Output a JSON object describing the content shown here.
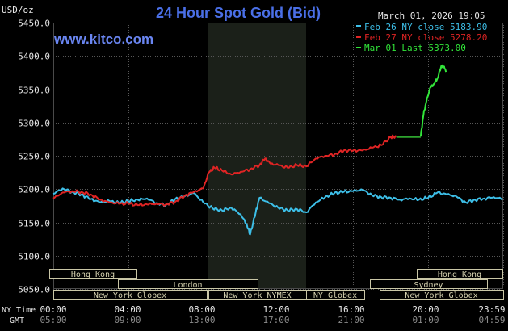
{
  "chart_data": {
    "type": "line",
    "title": "24 Hour Spot Gold (Bid)",
    "watermark": "www.kitco.com",
    "timestamp": "March 01, 2026 19:05",
    "y_unit": "USD/oz",
    "ylim": [
      5050,
      5450
    ],
    "y_ticks": [
      "5450.0",
      "5400.0",
      "5350.0",
      "5300.0",
      "5250.0",
      "5200.0",
      "5150.0",
      "5100.0",
      "5050.0"
    ],
    "x_row_label_ny": "NY Time",
    "x_row_label_gmt": "GMT",
    "x_ticks_ny": [
      "00:00",
      "04:00",
      "08:00",
      "12:00",
      "16:00",
      "20:00",
      "23:59"
    ],
    "x_ticks_gmt": [
      "05:00",
      "09:00",
      "13:00",
      "17:00",
      "21:00",
      "01:00",
      "04:59"
    ],
    "grid": true,
    "legend_position": "top-right",
    "legend": [
      {
        "label": "Feb 26 NY close 5183.90",
        "color": "#3dbfe8"
      },
      {
        "label": "Feb 27 NY close 5278.20",
        "color": "#e02424"
      },
      {
        "label": "Mar 01 Last 5373.00",
        "color": "#32e63a"
      }
    ],
    "sessions": {
      "hong_kong_1": "Hong Kong",
      "hong_kong_2": "Hong Kong",
      "london": "London",
      "sydney": "Sydney",
      "new_york_globex_1": "New York Globex",
      "new_york_nymex": "New York NYMEX",
      "ny_globex": "NY Globex",
      "new_york_globex_2": "New York Globex"
    },
    "colors": {
      "feb26": "#3dbfe8",
      "feb27": "#e02424",
      "mar01": "#32e63a",
      "flat": "#2ea42e",
      "title": "#4a6fe6",
      "watermark": "#6a86f2"
    },
    "series": [
      {
        "name": "Feb 26 NY close 5183.90",
        "x_hours": [
          0.0,
          0.5,
          1.0,
          1.5,
          2.0,
          2.5,
          3.0,
          3.5,
          4.0,
          4.5,
          5.0,
          5.5,
          6.0,
          6.5,
          7.0,
          7.5,
          8.0,
          8.5,
          9.0,
          9.5,
          10.0,
          10.3,
          10.5,
          10.8,
          11.0,
          11.5,
          12.0,
          12.5,
          13.0,
          13.5,
          14.0,
          14.5,
          15.0,
          15.5,
          16.0,
          16.5,
          17.0,
          17.5,
          18.0,
          18.5,
          19.0,
          19.5,
          20.0,
          20.5,
          21.0,
          21.5,
          22.0,
          22.5,
          23.0,
          23.5,
          23.98
        ],
        "values": [
          5193,
          5201,
          5196,
          5192,
          5185,
          5180,
          5182,
          5179,
          5182,
          5184,
          5186,
          5179,
          5176,
          5185,
          5189,
          5194,
          5180,
          5171,
          5168,
          5172,
          5162,
          5148,
          5132,
          5165,
          5187,
          5179,
          5172,
          5168,
          5170,
          5165,
          5180,
          5188,
          5194,
          5196,
          5197,
          5199,
          5191,
          5188,
          5187,
          5184,
          5186,
          5184,
          5187,
          5195,
          5192,
          5189,
          5180,
          5184,
          5186,
          5188,
          5185
        ]
      },
      {
        "name": "Feb 27 NY close 5278.20",
        "x_hours": [
          0.0,
          0.5,
          1.0,
          1.5,
          2.0,
          2.5,
          3.0,
          3.5,
          4.0,
          4.5,
          5.0,
          5.5,
          6.0,
          6.5,
          7.0,
          7.5,
          8.0,
          8.3,
          8.6,
          9.0,
          9.5,
          10.0,
          10.5,
          11.0,
          11.3,
          11.6,
          12.0,
          12.5,
          13.0,
          13.5,
          14.0,
          14.5,
          15.0,
          15.5,
          16.0,
          16.5,
          17.0,
          17.5,
          18.0,
          18.3
        ],
        "values": [
          5186,
          5195,
          5197,
          5196,
          5192,
          5184,
          5180,
          5178,
          5178,
          5176,
          5177,
          5178,
          5177,
          5181,
          5190,
          5196,
          5201,
          5225,
          5232,
          5228,
          5222,
          5226,
          5230,
          5236,
          5246,
          5238,
          5236,
          5232,
          5236,
          5234,
          5246,
          5250,
          5252,
          5258,
          5258,
          5258,
          5262,
          5266,
          5278,
          5279
        ]
      },
      {
        "name": "Mar 01 Flat",
        "x_hours": [
          18.3,
          19.6
        ],
        "values": [
          5278.2,
          5278.2
        ]
      },
      {
        "name": "Mar 01 Last 5373.00",
        "x_hours": [
          19.6,
          19.75,
          19.9,
          20.1,
          20.3,
          20.5,
          20.7,
          20.85,
          20.95
        ],
        "values": [
          5279,
          5312,
          5331,
          5352,
          5358,
          5367,
          5385,
          5384,
          5376
        ]
      }
    ]
  }
}
